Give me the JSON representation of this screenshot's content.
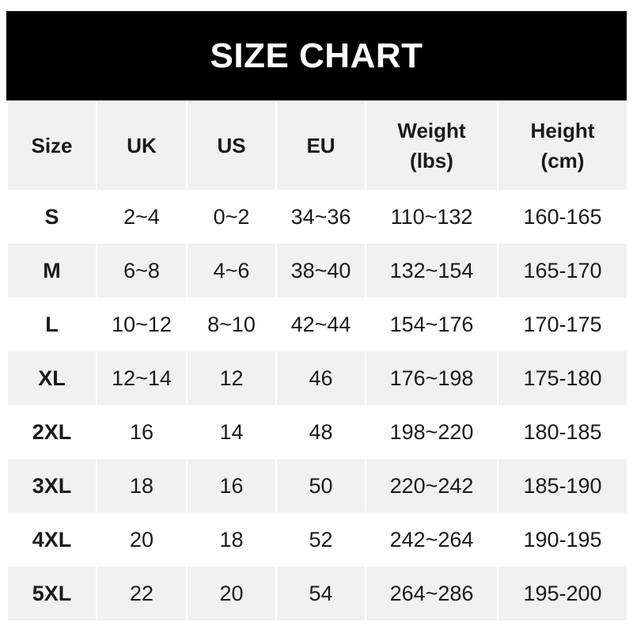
{
  "title": "SIZE CHART",
  "columns": [
    "Size",
    "UK",
    "US",
    "EU",
    "Weight\n(lbs)",
    "Height\n(cm)"
  ],
  "column_lines": [
    [
      "Size"
    ],
    [
      "UK"
    ],
    [
      "US"
    ],
    [
      "EU"
    ],
    [
      "Weight",
      "(lbs)"
    ],
    [
      "Height",
      "(cm)"
    ]
  ],
  "rows": [
    [
      "S",
      "2~4",
      "0~2",
      "34~36",
      "110~132",
      "160-165"
    ],
    [
      "M",
      "6~8",
      "4~6",
      "38~40",
      "132~154",
      "165-170"
    ],
    [
      "L",
      "10~12",
      "8~10",
      "42~44",
      "154~176",
      "170-175"
    ],
    [
      "XL",
      "12~14",
      "12",
      "46",
      "176~198",
      "175-180"
    ],
    [
      "2XL",
      "16",
      "14",
      "48",
      "198~220",
      "180-185"
    ],
    [
      "3XL",
      "18",
      "16",
      "50",
      "220~242",
      "185-190"
    ],
    [
      "4XL",
      "20",
      "18",
      "52",
      "242~264",
      "190-195"
    ],
    [
      "5XL",
      "22",
      "20",
      "54",
      "264~286",
      "195-200"
    ]
  ],
  "colors": {
    "header_bg": "#000000",
    "header_text": "#ffffff",
    "stripe": "#f1f1f1"
  }
}
